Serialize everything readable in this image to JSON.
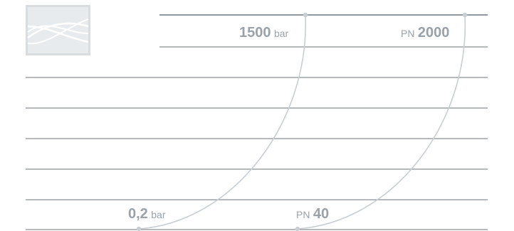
{
  "labels": {
    "top_pressure": {
      "value": "1500",
      "unit": "bar"
    },
    "top_pn": {
      "prefix": "PN",
      "value": "2000"
    },
    "bottom_pressure": {
      "value": "0,2",
      "unit": "bar"
    },
    "bottom_pn": {
      "prefix": "PN",
      "value": "40"
    }
  },
  "logo": {
    "icon": "wave-lines-logo-icon"
  },
  "colors": {
    "lines": "#8a8f94",
    "curves": "#c9ced2",
    "text": "#9aa1a7",
    "logo_bg": "#d9dde0"
  }
}
